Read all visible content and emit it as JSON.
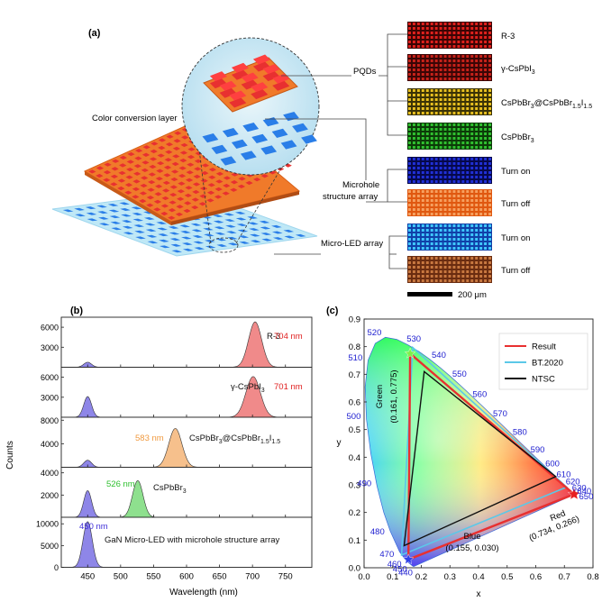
{
  "panel_a": {
    "label": "(a)",
    "callouts": {
      "ccl": "Color conversion layer",
      "pqds": "PQDs",
      "mha_line1": "Microhole",
      "mha_line2": "structure array",
      "microled": "Micro-LED array"
    },
    "tiles": [
      {
        "label": "R-3",
        "bg": "#3a0404",
        "dot": "#e0201c"
      },
      {
        "label": "γ-CsPbI3",
        "bg": "#3a0606",
        "dot": "#c8221a"
      },
      {
        "label": "CsPbBr3@CsPbBr1.5I1.5",
        "bg": "#3a3206",
        "dot": "#e8c020"
      },
      {
        "label": "CsPbBr3",
        "bg": "#0c3a08",
        "dot": "#30c030"
      },
      {
        "label": "Turn on",
        "bg": "#06084a",
        "dot": "#2030d8"
      },
      {
        "label": "Turn off",
        "bg": "#e05810",
        "dot": "#f6a060"
      },
      {
        "label": "Turn on",
        "bg": "#1040a8",
        "dot": "#40c8ff"
      },
      {
        "label": "Turn off",
        "bg": "#6a2c10",
        "dot": "#c87840"
      }
    ],
    "scalebar_label": "200 μm",
    "colors": {
      "orange": "#f07a2a",
      "red": "#e83030",
      "cyan": "#a8e4f4",
      "blue": "#2a7ee8"
    }
  },
  "panel_b": {
    "label": "(b)",
    "ylabel": "Counts",
    "xlabel": "Wavelength (nm)"
  },
  "panel_c": {
    "label": "(c)",
    "xlabel": "x",
    "ylabel": "y",
    "legend": [
      "Result",
      "BT.2020",
      "NTSC"
    ],
    "legend_colors": [
      "#e83030",
      "#5bc8e8",
      "#111111"
    ],
    "green_label": "Green",
    "green_coord": "(0.161, 0.775)",
    "red_label": "Red",
    "red_coord": "(0.734, 0.266)",
    "blue_label": "Blue",
    "blue_coord": "(0.155, 0.030)",
    "wavelength_labels": [
      "520",
      "530",
      "540",
      "550",
      "560",
      "570",
      "580",
      "590",
      "600",
      "610",
      "620",
      "630",
      "640",
      "650",
      "510",
      "500",
      "490",
      "480",
      "470",
      "460",
      "450",
      "440"
    ]
  },
  "chart_data": [
    {
      "type": "line",
      "panel": "(b)",
      "xlabel": "Wavelength (nm)",
      "ylabel": "Counts",
      "xlim": [
        410,
        790
      ],
      "xticks": [
        450,
        500,
        550,
        600,
        650,
        700,
        750
      ],
      "subplots": [
        {
          "name": "R-3",
          "peak_label": "704 nm",
          "peak_color": "#e02020",
          "fill": "#f08a8a",
          "yticks": [
            3000,
            6000
          ],
          "ylim": [
            0,
            7500
          ],
          "peaks": [
            {
              "center": 704,
              "width": 10,
              "height": 6800
            },
            {
              "center": 450,
              "width": 6,
              "height": 750
            }
          ]
        },
        {
          "name": "γ-CsPbI3",
          "peak_label": "701 nm",
          "peak_color": "#e02020",
          "fill": "#f08a8a",
          "yticks": [
            3000,
            6000
          ],
          "ylim": [
            0,
            7500
          ],
          "peaks": [
            {
              "center": 701,
              "width": 11,
              "height": 6100
            },
            {
              "center": 450,
              "width": 6,
              "height": 3100
            }
          ]
        },
        {
          "name": "CsPbBr3@CsPbBr1.5I1.5",
          "peak_label": "583 nm",
          "peak_color": "#f09a40",
          "fill": "#f6c08c",
          "yticks": [
            4000,
            8000
          ],
          "ylim": [
            0,
            8500
          ],
          "peaks": [
            {
              "center": 583,
              "width": 10,
              "height": 6600
            },
            {
              "center": 450,
              "width": 6,
              "height": 1200
            }
          ]
        },
        {
          "name": "CsPbBr3",
          "peak_label": "526 nm",
          "peak_color": "#30c030",
          "fill": "#8ee08e",
          "yticks": [
            2000,
            4000
          ],
          "ylim": [
            0,
            4500
          ],
          "peaks": [
            {
              "center": 526,
              "width": 8,
              "height": 3300
            },
            {
              "center": 450,
              "width": 6,
              "height": 2400
            }
          ]
        },
        {
          "name": "GaN Micro-LED with microhole structure array",
          "peak_label": "450 nm",
          "peak_color": "#4030d8",
          "fill": "#8e86e8",
          "yticks": [
            0,
            5000,
            10000
          ],
          "ylim": [
            0,
            11500
          ],
          "peaks": [
            {
              "center": 450,
              "width": 7,
              "height": 10500
            }
          ]
        }
      ]
    },
    {
      "type": "scatter",
      "panel": "(c)",
      "xlabel": "x",
      "ylabel": "y",
      "xlim": [
        0.0,
        0.8
      ],
      "ylim": [
        0.0,
        0.9
      ],
      "xticks": [
        0.0,
        0.1,
        0.2,
        0.3,
        0.4,
        0.5,
        0.6,
        0.7,
        0.8
      ],
      "yticks": [
        0.0,
        0.1,
        0.2,
        0.3,
        0.4,
        0.5,
        0.6,
        0.7,
        0.8,
        0.9
      ],
      "series": [
        {
          "name": "Result",
          "points": [
            [
              0.161,
              0.775
            ],
            [
              0.734,
              0.266
            ],
            [
              0.155,
              0.03
            ]
          ]
        },
        {
          "name": "BT.2020",
          "points": [
            [
              0.17,
              0.797
            ],
            [
              0.708,
              0.292
            ],
            [
              0.131,
              0.046
            ]
          ]
        },
        {
          "name": "NTSC",
          "points": [
            [
              0.21,
              0.71
            ],
            [
              0.67,
              0.33
            ],
            [
              0.14,
              0.08
            ]
          ]
        }
      ],
      "spectral_locus": [
        [
          0.1741,
          0.005
        ],
        [
          0.1738,
          0.0049
        ],
        [
          0.1733,
          0.0048
        ],
        [
          0.1726,
          0.0048
        ],
        [
          0.1714,
          0.0051
        ],
        [
          0.1689,
          0.0069
        ],
        [
          0.1644,
          0.0109
        ],
        [
          0.1566,
          0.0177
        ],
        [
          0.144,
          0.0297
        ],
        [
          0.1241,
          0.0578
        ],
        [
          0.0913,
          0.1327
        ],
        [
          0.0687,
          0.2007
        ],
        [
          0.0454,
          0.295
        ],
        [
          0.0235,
          0.4127
        ],
        [
          0.0082,
          0.5384
        ],
        [
          0.0039,
          0.6548
        ],
        [
          0.0139,
          0.7502
        ],
        [
          0.0389,
          0.812
        ],
        [
          0.0743,
          0.8338
        ],
        [
          0.1142,
          0.8262
        ],
        [
          0.1547,
          0.8059
        ],
        [
          0.1929,
          0.7816
        ],
        [
          0.2296,
          0.7543
        ],
        [
          0.2658,
          0.7243
        ],
        [
          0.3016,
          0.6923
        ],
        [
          0.3373,
          0.6589
        ],
        [
          0.3731,
          0.6245
        ],
        [
          0.4087,
          0.5896
        ],
        [
          0.4441,
          0.5547
        ],
        [
          0.4788,
          0.5202
        ],
        [
          0.5125,
          0.4866
        ],
        [
          0.5448,
          0.4544
        ],
        [
          0.5752,
          0.4242
        ],
        [
          0.6029,
          0.3965
        ],
        [
          0.627,
          0.3725
        ],
        [
          0.6482,
          0.3514
        ],
        [
          0.6658,
          0.334
        ],
        [
          0.6801,
          0.3197
        ],
        [
          0.6915,
          0.3083
        ],
        [
          0.7006,
          0.2993
        ],
        [
          0.7079,
          0.292
        ],
        [
          0.714,
          0.2859
        ],
        [
          0.719,
          0.2809
        ],
        [
          0.723,
          0.277
        ],
        [
          0.726,
          0.274
        ],
        [
          0.7283,
          0.2717
        ],
        [
          0.73,
          0.27
        ],
        [
          0.7347,
          0.2653
        ]
      ]
    }
  ]
}
